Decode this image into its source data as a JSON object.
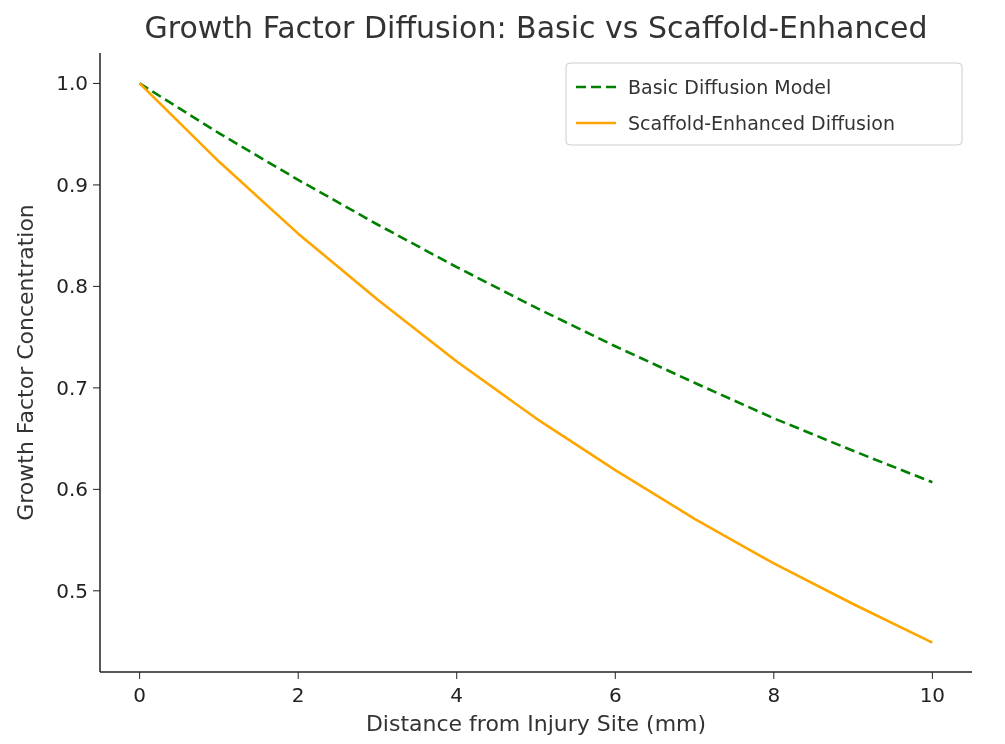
{
  "chart_data": {
    "type": "line",
    "title": "Growth Factor Diffusion: Basic vs Scaffold-Enhanced",
    "xlabel": "Distance from Injury Site (mm)",
    "ylabel": "Growth Factor Concentration",
    "x": [
      0,
      1,
      2,
      3,
      4,
      5,
      6,
      7,
      8,
      9,
      10
    ],
    "series": [
      {
        "name": "Basic Diffusion Model",
        "color": "#008000",
        "line_style": "dashed",
        "values": [
          1.0,
          0.951,
          0.905,
          0.861,
          0.819,
          0.779,
          0.741,
          0.705,
          0.67,
          0.638,
          0.607
        ]
      },
      {
        "name": "Scaffold-Enhanced Diffusion",
        "color": "#ffa500",
        "line_style": "solid",
        "values": [
          1.0,
          0.923,
          0.852,
          0.787,
          0.726,
          0.67,
          0.619,
          0.571,
          0.527,
          0.487,
          0.449
        ]
      }
    ],
    "xlim": [
      -0.5,
      10.5
    ],
    "xticks": [
      0,
      2,
      4,
      6,
      8,
      10
    ],
    "ylim": [
      0.42,
      1.03
    ],
    "yticks": [
      {
        "value": 0.5,
        "label": "0.5"
      },
      {
        "value": 0.6,
        "label": "0.6"
      },
      {
        "value": 0.7,
        "label": "0.7"
      },
      {
        "value": 0.8,
        "label": "0.8"
      },
      {
        "value": 0.9,
        "label": "0.9"
      },
      {
        "value": 1.0,
        "label": "1.0"
      }
    ],
    "grid": false,
    "legend": "top right",
    "marker": "none"
  }
}
